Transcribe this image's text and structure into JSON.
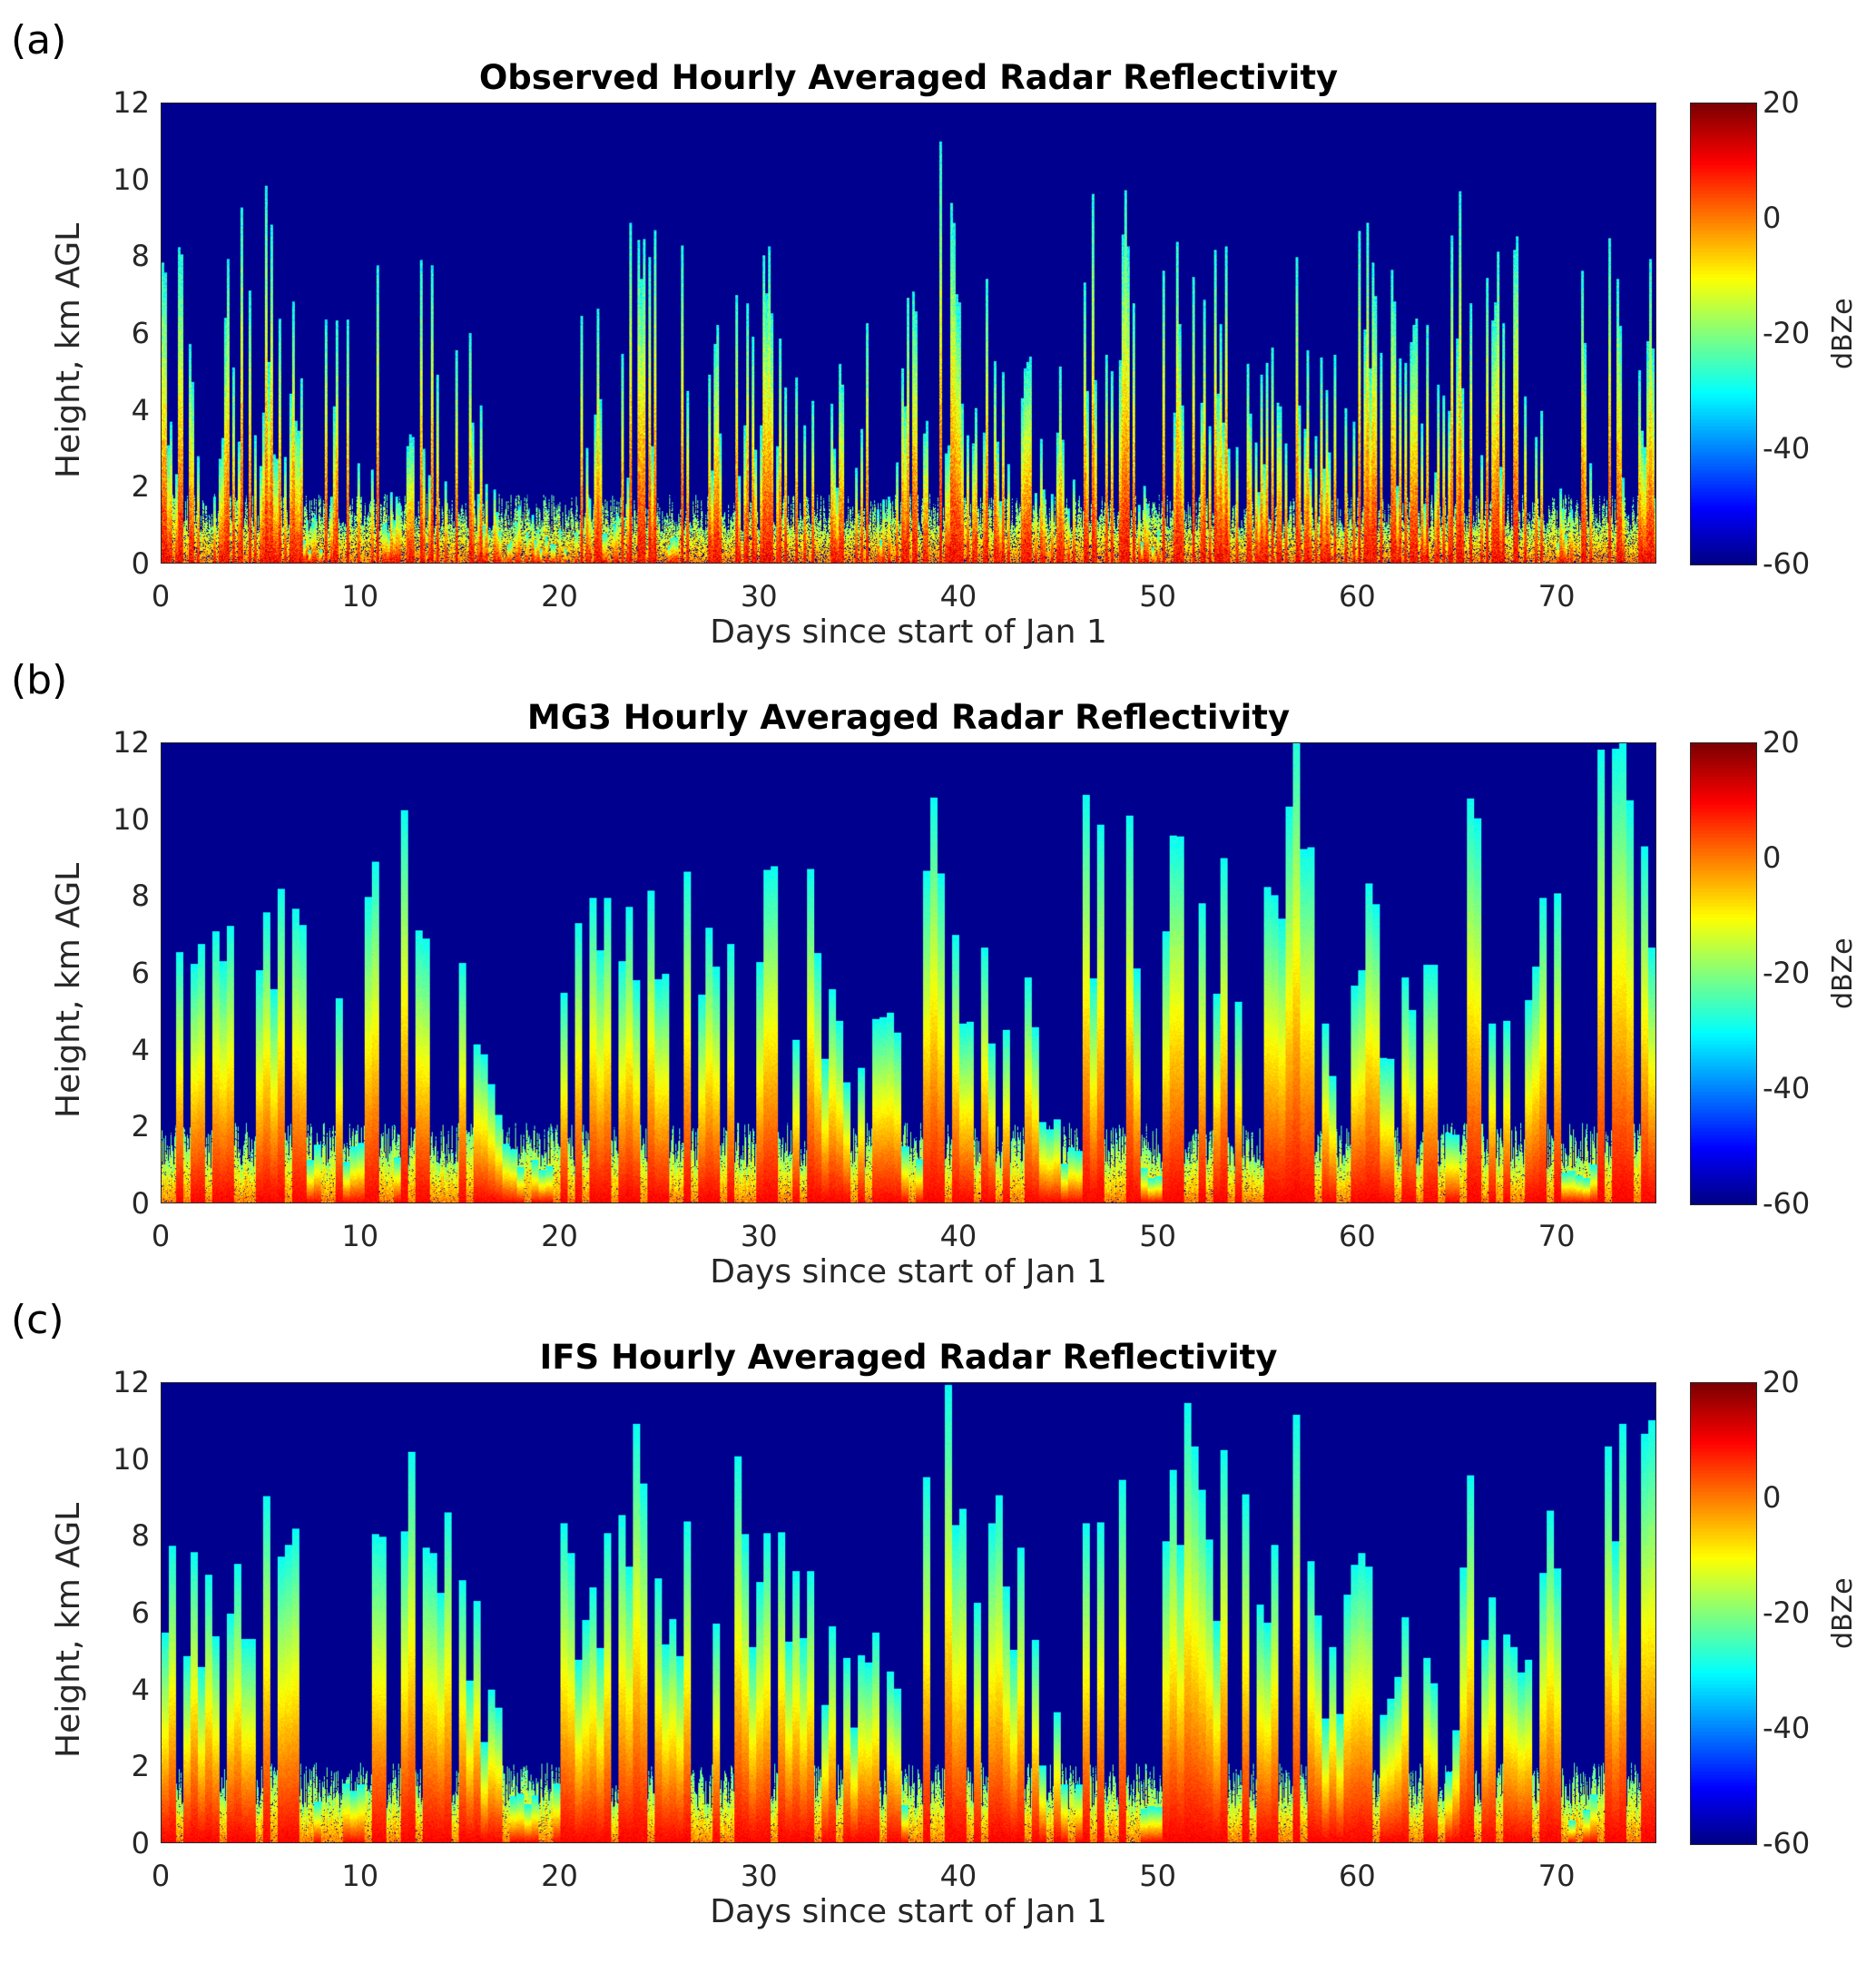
{
  "chart_data": [
    {
      "type": "heatmap",
      "panel_label": "(a)",
      "title": "Observed Hourly Averaged Radar Reflectivity",
      "xlabel": "Days since start of Jan 1",
      "ylabel": "Height, km AGL",
      "xlim": [
        0,
        75
      ],
      "ylim": [
        0,
        12
      ],
      "xticks": [
        "0",
        "10",
        "20",
        "30",
        "40",
        "50",
        "60",
        "70"
      ],
      "yticks": [
        "0",
        "2",
        "4",
        "6",
        "8",
        "10",
        "12"
      ],
      "colorbar": {
        "label": "dBZe",
        "range": [
          -60,
          20
        ],
        "ticks": [
          "20",
          "0",
          "-20",
          "-40",
          "-60"
        ],
        "colormap": "jet"
      },
      "style": "observed",
      "daily_cloud_top_km": [
        8,
        9,
        6,
        9,
        8,
        10,
        8,
        1.5,
        7.5,
        8,
        8.5,
        2,
        9.8,
        7.5,
        7.5,
        8,
        2,
        1.5,
        1.5,
        1,
        1,
        7,
        1.5,
        9,
        8.5,
        1.5,
        8.5,
        7,
        8,
        7.5,
        8,
        6,
        6,
        5,
        5,
        7,
        3,
        7.5,
        9,
        10.5,
        8,
        8,
        6,
        6,
        5,
        6,
        9.5,
        9.5,
        9.5,
        2,
        9.8,
        9,
        8,
        9.5,
        6,
        7,
        8,
        8,
        6,
        5,
        9,
        8,
        9,
        6,
        9.5,
        9.5,
        8,
        8.5,
        9,
        8,
        2,
        8.5,
        9.5,
        9.8,
        8
      ]
    },
    {
      "type": "heatmap",
      "panel_label": "(b)",
      "title": "MG3 Hourly Averaged Radar Reflectivity",
      "xlabel": "Days since start of Jan 1",
      "ylabel": "Height, km AGL",
      "xlim": [
        0,
        75
      ],
      "ylim": [
        0,
        12
      ],
      "xticks": [
        "0",
        "10",
        "20",
        "30",
        "40",
        "50",
        "60",
        "70"
      ],
      "yticks": [
        "0",
        "2",
        "4",
        "6",
        "8",
        "10",
        "12"
      ],
      "colorbar": {
        "label": "dBZe",
        "range": [
          -60,
          20
        ],
        "ticks": [
          "20",
          "0",
          "-20",
          "-40",
          "-60"
        ],
        "colormap": "jet"
      },
      "style": "model",
      "daily_cloud_top_km": [
        9,
        8,
        7,
        10,
        8,
        9.5,
        9.5,
        1.5,
        9.5,
        1.5,
        9.3,
        1.5,
        10.5,
        8.7,
        8.7,
        6,
        4,
        1.5,
        1.5,
        1.5,
        8,
        8,
        8.5,
        10.5,
        8.5,
        6,
        9,
        7.5,
        10,
        8.7,
        8.7,
        7,
        9.3,
        6,
        4,
        5,
        5,
        1.5,
        11,
        12,
        7.5,
        7.5,
        7.5,
        7.5,
        3,
        1.5,
        10.5,
        10.5,
        10,
        1,
        11.5,
        11,
        8,
        9.5,
        10.5,
        10,
        12,
        9,
        5,
        6,
        10.8,
        5.5,
        6,
        7,
        2.5,
        10.8,
        7,
        8,
        7,
        10.5,
        1,
        1,
        11.5,
        11.5,
        12
      ]
    },
    {
      "type": "heatmap",
      "panel_label": "(c)",
      "title": "IFS Hourly Averaged Radar Reflectivity",
      "xlabel": "Days since start of Jan 1",
      "ylabel": "Height, km AGL",
      "xlim": [
        0,
        75
      ],
      "ylim": [
        0,
        12
      ],
      "xticks": [
        "0",
        "10",
        "20",
        "30",
        "40",
        "50",
        "60",
        "70"
      ],
      "yticks": [
        "0",
        "2",
        "4",
        "6",
        "8",
        "10",
        "12"
      ],
      "colorbar": {
        "label": "dBZe",
        "range": [
          -60,
          20
        ],
        "ticks": [
          "20",
          "0",
          "-20",
          "-40",
          "-60"
        ],
        "colormap": "jet"
      },
      "style": "model",
      "daily_cloud_top_km": [
        9.5,
        8,
        7,
        10.5,
        9,
        10,
        10,
        1.5,
        9.5,
        1.5,
        9.3,
        1.5,
        11.3,
        9,
        8.5,
        7,
        4,
        1.5,
        1.5,
        1.5,
        8.5,
        8,
        8.5,
        11,
        9,
        7,
        9.5,
        8,
        10.8,
        8.7,
        8.5,
        7,
        9.3,
        6.5,
        5,
        5.5,
        5,
        1.5,
        12,
        12,
        9,
        9,
        8,
        7.5,
        3.5,
        1.5,
        10.5,
        10.5,
        11,
        1,
        11.8,
        11,
        9,
        10.5,
        10,
        10,
        12,
        9,
        5.5,
        7,
        11,
        6,
        6.5,
        7.5,
        3,
        11,
        8,
        8,
        8,
        10,
        1,
        1.5,
        12,
        12,
        12
      ]
    }
  ]
}
